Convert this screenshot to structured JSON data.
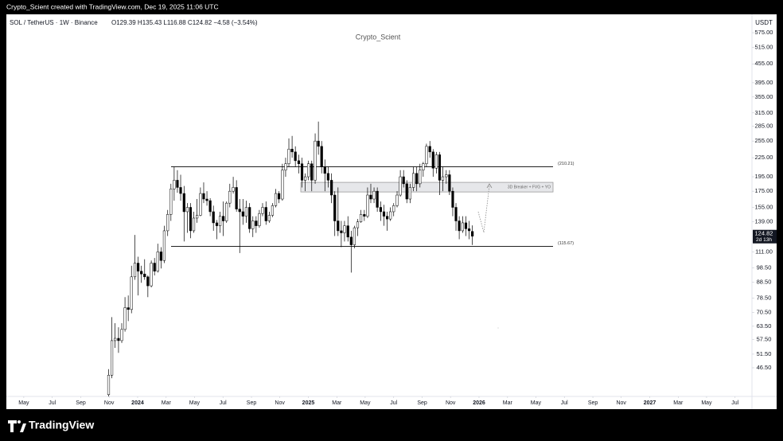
{
  "header": {
    "credit": "Crypto_Scient created with TradingView.com, Dec 19, 2025 11:06 UTC"
  },
  "footer": {
    "brand": "TradingView"
  },
  "chart_data": {
    "type": "candlestick",
    "symbol": "SOL / TetherUS · 1W · Binance",
    "ohlc_legend": "O129.39 H135.43 L116.88 C124.82 −4.58 (−3.54%)",
    "watermark": "Crypto_Scient",
    "currency": "USDT",
    "countdown": "2d 13h",
    "log_scale": true,
    "grid": false,
    "up_color": "#ffffff",
    "down_color": "#000000",
    "wick_color": "#000000",
    "xlim": [
      2023.231,
      2027.599
    ],
    "xticks": [
      {
        "value": 2023.333,
        "label": "May"
      },
      {
        "value": 2023.5,
        "label": "Jul"
      },
      {
        "value": 2023.667,
        "label": "Sep"
      },
      {
        "value": 2023.833,
        "label": "Nov"
      },
      2024,
      {
        "value": 2024.167,
        "label": "Mar"
      },
      {
        "value": 2024.333,
        "label": "May"
      },
      {
        "value": 2024.5,
        "label": "Jul"
      },
      {
        "value": 2024.667,
        "label": "Sep"
      },
      {
        "value": 2024.833,
        "label": "Nov"
      },
      2025,
      {
        "value": 2025.167,
        "label": "Mar"
      },
      {
        "value": 2025.333,
        "label": "May"
      },
      {
        "value": 2025.5,
        "label": "Jul"
      },
      {
        "value": 2025.667,
        "label": "Sep"
      },
      {
        "value": 2025.833,
        "label": "Nov"
      },
      2026,
      {
        "value": 2026.167,
        "label": "Mar"
      },
      {
        "value": 2026.333,
        "label": "May"
      },
      {
        "value": 2026.5,
        "label": "Jul"
      },
      {
        "value": 2026.667,
        "label": "Sep"
      },
      {
        "value": 2026.833,
        "label": "Nov"
      },
      2027,
      {
        "value": 2027.167,
        "label": "Mar"
      },
      {
        "value": 2027.333,
        "label": "May"
      },
      {
        "value": 2027.5,
        "label": "Jul"
      }
    ],
    "ylim": [
      37.5,
      660
    ],
    "yticks": [
      {
        "value": 575,
        "label": "575.00"
      },
      {
        "value": 515,
        "label": "515.00"
      },
      {
        "value": 455,
        "label": "455.00"
      },
      {
        "value": 395,
        "label": "395.00"
      },
      {
        "value": 355,
        "label": "355.00"
      },
      {
        "value": 315,
        "label": "315.00"
      },
      {
        "value": 285,
        "label": "285.00"
      },
      {
        "value": 255,
        "label": "255.00"
      },
      {
        "value": 225,
        "label": "225.00"
      },
      {
        "value": 195,
        "label": "195.00"
      },
      {
        "value": 175,
        "label": "175.00"
      },
      {
        "value": 155,
        "label": "155.00"
      },
      {
        "value": 139,
        "label": "139.00"
      },
      {
        "value": 111,
        "label": "111.00"
      },
      {
        "value": 98.5,
        "label": "98.50"
      },
      {
        "value": 88.5,
        "label": "88.50"
      },
      {
        "value": 78.5,
        "label": "78.50"
      },
      {
        "value": 70.5,
        "label": "70.50"
      },
      {
        "value": 63.5,
        "label": "63.50"
      },
      {
        "value": 57.5,
        "label": "57.50"
      },
      {
        "value": 51.5,
        "label": "51.50"
      },
      {
        "value": 46.5,
        "label": "46.50"
      }
    ],
    "levels": [
      {
        "value": 210.21,
        "label": "(210.21)"
      },
      {
        "value": 115.67,
        "label": "(115.67)"
      }
    ],
    "zone": {
      "label": "3D Breaker + FVG + YO",
      "top": 187,
      "bottom": 174
    },
    "x": [
      2023.83,
      2023.849,
      2023.868,
      2023.888,
      2023.907,
      2023.926,
      2023.945,
      2023.964,
      2023.984,
      2024.003,
      2024.022,
      2024.041,
      2024.06,
      2024.08,
      2024.099,
      2024.118,
      2024.137,
      2024.156,
      2024.176,
      2024.195,
      2024.214,
      2024.233,
      2024.252,
      2024.272,
      2024.291,
      2024.31,
      2024.329,
      2024.348,
      2024.368,
      2024.387,
      2024.406,
      2024.425,
      2024.444,
      2024.464,
      2024.483,
      2024.502,
      2024.521,
      2024.54,
      2024.56,
      2024.579,
      2024.598,
      2024.617,
      2024.636,
      2024.656,
      2024.675,
      2024.694,
      2024.713,
      2024.732,
      2024.752,
      2024.771,
      2024.79,
      2024.809,
      2024.828,
      2024.848,
      2024.867,
      2024.886,
      2024.905,
      2024.924,
      2024.944,
      2024.963,
      2024.982,
      2025.001,
      2025.02,
      2025.04,
      2025.059,
      2025.078,
      2025.097,
      2025.116,
      2025.136,
      2025.155,
      2025.174,
      2025.193,
      2025.212,
      2025.232,
      2025.251,
      2025.27,
      2025.289,
      2025.308,
      2025.328,
      2025.347,
      2025.366,
      2025.385,
      2025.404,
      2025.424,
      2025.443,
      2025.462,
      2025.481,
      2025.5,
      2025.52,
      2025.539,
      2025.558,
      2025.577,
      2025.596,
      2025.616,
      2025.635,
      2025.654,
      2025.673,
      2025.692,
      2025.712,
      2025.731,
      2025.75,
      2025.769,
      2025.788,
      2025.808,
      2025.827,
      2025.846,
      2025.865,
      2025.884,
      2025.904,
      2025.923,
      2025.942,
      2025.961
    ],
    "open": [
      38,
      44,
      57,
      58,
      57,
      62,
      73,
      72,
      92,
      102,
      96,
      94,
      92,
      86,
      102,
      96,
      111,
      104,
      130,
      147,
      178,
      190,
      180,
      172,
      150,
      155,
      130,
      143,
      146,
      172,
      165,
      163,
      150,
      138,
      135,
      145,
      140,
      160,
      175,
      180,
      153,
      150,
      145,
      155,
      132,
      140,
      135,
      148,
      155,
      140,
      146,
      157,
      172,
      165,
      205,
      215,
      240,
      235,
      220,
      215,
      190,
      195,
      215,
      190,
      255,
      245,
      210,
      200,
      190,
      170,
      140,
      130,
      128,
      135,
      124,
      117,
      133,
      139,
      147,
      145,
      170,
      165,
      175,
      155,
      150,
      145,
      142,
      150,
      157,
      170,
      195,
      185,
      165,
      180,
      200,
      185,
      205,
      215,
      245,
      235,
      208,
      230,
      190,
      195,
      198,
      175,
      155,
      140,
      130,
      138,
      132,
      129.39
    ],
    "high": [
      46,
      68,
      65,
      63,
      65,
      79,
      80,
      100,
      126,
      107,
      100,
      105,
      93,
      104,
      106,
      118,
      115,
      135,
      152,
      185,
      210,
      205,
      198,
      182,
      160,
      160,
      150,
      165,
      180,
      187,
      175,
      166,
      157,
      141,
      150,
      162,
      162,
      185,
      195,
      190,
      165,
      165,
      163,
      160,
      145,
      145,
      152,
      160,
      162,
      150,
      160,
      178,
      175,
      215,
      225,
      260,
      265,
      245,
      230,
      225,
      200,
      220,
      220,
      270,
      295,
      255,
      222,
      210,
      200,
      175,
      180,
      140,
      140,
      145,
      130,
      135,
      142,
      152,
      152,
      180,
      185,
      180,
      180,
      162,
      158,
      150,
      155,
      160,
      175,
      205,
      205,
      190,
      185,
      210,
      210,
      215,
      218,
      250,
      255,
      240,
      235,
      235,
      210,
      205,
      205,
      180,
      160,
      145,
      145,
      145,
      140,
      135.43
    ],
    "low": [
      37,
      43,
      54,
      52,
      56,
      61,
      66,
      70,
      90,
      80,
      88,
      90,
      79,
      85,
      93,
      95,
      98,
      102,
      125,
      140,
      163,
      173,
      163,
      120,
      128,
      123,
      128,
      138,
      145,
      160,
      157,
      145,
      130,
      122,
      128,
      125,
      138,
      155,
      172,
      150,
      110,
      136,
      138,
      128,
      124,
      128,
      133,
      145,
      136,
      138,
      144,
      155,
      160,
      163,
      195,
      210,
      225,
      210,
      200,
      180,
      175,
      190,
      175,
      185,
      230,
      200,
      175,
      180,
      160,
      125,
      125,
      115,
      120,
      120,
      95,
      114,
      125,
      138,
      140,
      143,
      160,
      160,
      150,
      140,
      135,
      130,
      140,
      145,
      155,
      168,
      180,
      160,
      160,
      175,
      175,
      180,
      195,
      210,
      225,
      195,
      200,
      170,
      175,
      185,
      170,
      145,
      130,
      122,
      128,
      125,
      122,
      116.88
    ],
    "close": [
      44,
      57,
      58,
      57,
      62,
      73,
      72,
      92,
      102,
      96,
      94,
      92,
      86,
      102,
      96,
      111,
      104,
      130,
      147,
      178,
      190,
      180,
      172,
      150,
      155,
      130,
      143,
      146,
      172,
      165,
      163,
      150,
      138,
      135,
      145,
      140,
      160,
      175,
      180,
      153,
      150,
      145,
      155,
      132,
      140,
      135,
      148,
      155,
      140,
      146,
      157,
      172,
      165,
      205,
      215,
      240,
      235,
      220,
      215,
      190,
      195,
      215,
      190,
      255,
      245,
      210,
      200,
      190,
      170,
      140,
      130,
      128,
      135,
      124,
      117,
      133,
      139,
      147,
      145,
      170,
      165,
      175,
      155,
      150,
      145,
      142,
      150,
      157,
      170,
      195,
      185,
      165,
      180,
      200,
      185,
      205,
      215,
      245,
      235,
      208,
      230,
      190,
      195,
      198,
      175,
      155,
      140,
      130,
      138,
      132,
      130,
      124.82
    ]
  }
}
